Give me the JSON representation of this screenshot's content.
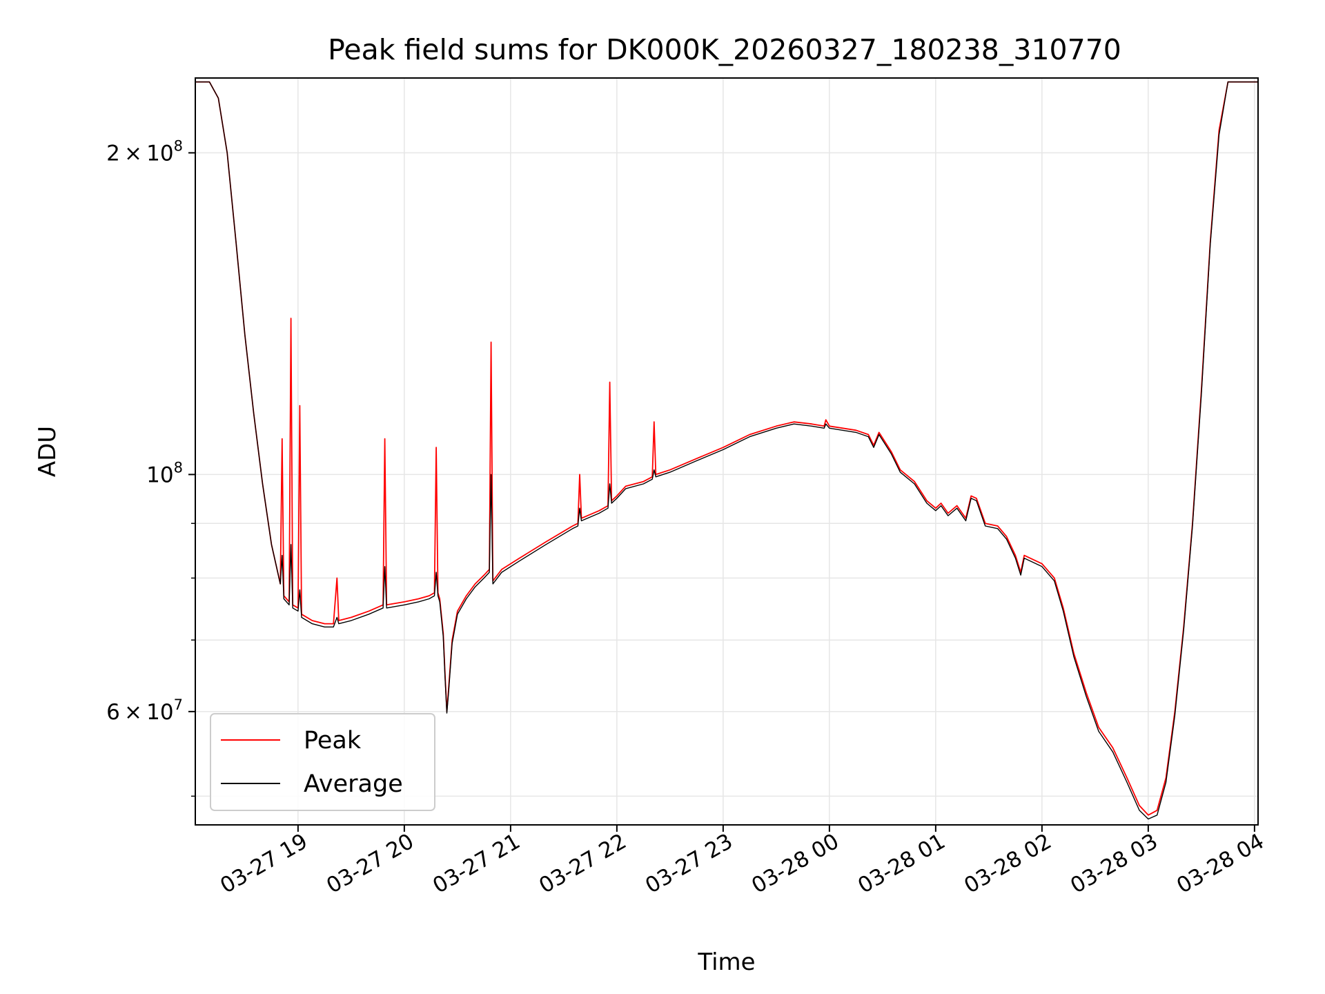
{
  "chart_data": {
    "type": "line",
    "title": "Peak field sums for DK000K_20260327_180238_310770",
    "xlabel": "Time",
    "ylabel": "ADU",
    "yscale": "log",
    "grid": true,
    "legend_position": "lower-left",
    "xlim": [
      "2026-03-27 18:02",
      "2026-03-28 04:02"
    ],
    "ylim": [
      47000000,
      235000000
    ],
    "x_ticks": [
      {
        "t": "2026-03-27 19:00",
        "label": "03-27 19"
      },
      {
        "t": "2026-03-27 20:00",
        "label": "03-27 20"
      },
      {
        "t": "2026-03-27 21:00",
        "label": "03-27 21"
      },
      {
        "t": "2026-03-27 22:00",
        "label": "03-27 22"
      },
      {
        "t": "2026-03-27 23:00",
        "label": "03-27 23"
      },
      {
        "t": "2026-03-28 00:00",
        "label": "03-28 00"
      },
      {
        "t": "2026-03-28 01:00",
        "label": "03-28 01"
      },
      {
        "t": "2026-03-28 02:00",
        "label": "03-28 02"
      },
      {
        "t": "2026-03-28 03:00",
        "label": "03-28 03"
      },
      {
        "t": "2026-03-28 04:00",
        "label": "03-28 04"
      }
    ],
    "y_major_ticks": [
      {
        "v": 200000000,
        "mant": "2 × 10",
        "exp": "8"
      },
      {
        "v": 100000000,
        "mant": "10",
        "exp": "8"
      },
      {
        "v": 60000000,
        "mant": "6 × 10",
        "exp": "7"
      }
    ],
    "y_minor_ticks": [
      50000000,
      70000000,
      80000000,
      90000000
    ],
    "series": [
      {
        "name": "Peak",
        "color": "#ff0000",
        "points": [
          [
            "2026-03-27 18:02",
            233000000
          ],
          [
            "2026-03-27 18:10",
            233000000
          ],
          [
            "2026-03-27 18:15",
            225000000
          ],
          [
            "2026-03-27 18:20",
            200000000
          ],
          [
            "2026-03-27 18:25",
            165000000
          ],
          [
            "2026-03-27 18:30",
            135000000
          ],
          [
            "2026-03-27 18:35",
            114000000
          ],
          [
            "2026-03-27 18:40",
            98000000
          ],
          [
            "2026-03-27 18:45",
            86000000
          ],
          [
            "2026-03-27 18:50",
            79000000
          ],
          [
            "2026-03-27 18:51",
            108000000
          ],
          [
            "2026-03-27 18:52",
            77000000
          ],
          [
            "2026-03-27 18:55",
            76000000
          ],
          [
            "2026-03-27 18:56",
            140000000
          ],
          [
            "2026-03-27 18:57",
            75500000
          ],
          [
            "2026-03-27 19:00",
            75000000
          ],
          [
            "2026-03-27 19:01",
            116000000
          ],
          [
            "2026-03-27 19:02",
            74000000
          ],
          [
            "2026-03-27 19:08",
            73000000
          ],
          [
            "2026-03-27 19:15",
            72500000
          ],
          [
            "2026-03-27 19:20",
            72500000
          ],
          [
            "2026-03-27 19:22",
            80000000
          ],
          [
            "2026-03-27 19:23",
            73000000
          ],
          [
            "2026-03-27 19:30",
            73500000
          ],
          [
            "2026-03-27 19:40",
            74500000
          ],
          [
            "2026-03-27 19:48",
            75500000
          ],
          [
            "2026-03-27 19:49",
            108000000
          ],
          [
            "2026-03-27 19:50",
            75500000
          ],
          [
            "2026-03-27 20:00",
            76000000
          ],
          [
            "2026-03-27 20:08",
            76500000
          ],
          [
            "2026-03-27 20:14",
            77000000
          ],
          [
            "2026-03-27 20:17",
            77500000
          ],
          [
            "2026-03-27 20:18",
            106000000
          ],
          [
            "2026-03-27 20:19",
            77500000
          ],
          [
            "2026-03-27 20:20",
            76500000
          ],
          [
            "2026-03-27 20:22",
            71000000
          ],
          [
            "2026-03-27 20:23",
            65000000
          ],
          [
            "2026-03-27 20:24",
            60000000
          ],
          [
            "2026-03-27 20:25",
            63000000
          ],
          [
            "2026-03-27 20:27",
            70000000
          ],
          [
            "2026-03-27 20:30",
            74500000
          ],
          [
            "2026-03-27 20:35",
            77000000
          ],
          [
            "2026-03-27 20:40",
            79000000
          ],
          [
            "2026-03-27 20:45",
            80500000
          ],
          [
            "2026-03-27 20:48",
            81500000
          ],
          [
            "2026-03-27 20:49",
            133000000
          ],
          [
            "2026-03-27 20:50",
            79500000
          ],
          [
            "2026-03-27 20:55",
            81500000
          ],
          [
            "2026-03-27 21:05",
            83500000
          ],
          [
            "2026-03-27 21:20",
            86500000
          ],
          [
            "2026-03-27 21:35",
            89500000
          ],
          [
            "2026-03-27 21:38",
            90000000
          ],
          [
            "2026-03-27 21:39",
            100000000
          ],
          [
            "2026-03-27 21:40",
            91000000
          ],
          [
            "2026-03-27 21:50",
            92500000
          ],
          [
            "2026-03-27 21:55",
            93500000
          ],
          [
            "2026-03-27 21:56",
            122000000
          ],
          [
            "2026-03-27 21:57",
            94500000
          ],
          [
            "2026-03-27 22:00",
            95500000
          ],
          [
            "2026-03-27 22:05",
            97500000
          ],
          [
            "2026-03-27 22:15",
            98500000
          ],
          [
            "2026-03-27 22:20",
            99500000
          ],
          [
            "2026-03-27 22:21",
            112000000
          ],
          [
            "2026-03-27 22:22",
            100000000
          ],
          [
            "2026-03-27 22:30",
            101000000
          ],
          [
            "2026-03-27 22:45",
            103500000
          ],
          [
            "2026-03-27 23:00",
            106000000
          ],
          [
            "2026-03-27 23:15",
            109000000
          ],
          [
            "2026-03-27 23:30",
            111000000
          ],
          [
            "2026-03-27 23:40",
            112000000
          ],
          [
            "2026-03-27 23:50",
            111500000
          ],
          [
            "2026-03-27 23:57",
            111000000
          ],
          [
            "2026-03-27 23:58",
            112500000
          ],
          [
            "2026-03-28 00:00",
            111000000
          ],
          [
            "2026-03-28 00:15",
            110000000
          ],
          [
            "2026-03-28 00:22",
            109000000
          ],
          [
            "2026-03-28 00:25",
            106500000
          ],
          [
            "2026-03-28 00:28",
            109500000
          ],
          [
            "2026-03-28 00:35",
            105000000
          ],
          [
            "2026-03-28 00:40",
            101000000
          ],
          [
            "2026-03-28 00:48",
            98500000
          ],
          [
            "2026-03-28 00:55",
            94500000
          ],
          [
            "2026-03-28 01:00",
            93000000
          ],
          [
            "2026-03-28 01:03",
            94000000
          ],
          [
            "2026-03-28 01:07",
            92000000
          ],
          [
            "2026-03-28 01:12",
            93500000
          ],
          [
            "2026-03-28 01:17",
            91000000
          ],
          [
            "2026-03-28 01:20",
            95500000
          ],
          [
            "2026-03-28 01:23",
            95000000
          ],
          [
            "2026-03-28 01:28",
            90000000
          ],
          [
            "2026-03-28 01:35",
            89500000
          ],
          [
            "2026-03-28 01:40",
            87500000
          ],
          [
            "2026-03-28 01:45",
            84000000
          ],
          [
            "2026-03-28 01:48",
            81000000
          ],
          [
            "2026-03-28 01:50",
            84000000
          ],
          [
            "2026-03-28 02:00",
            82500000
          ],
          [
            "2026-03-28 02:07",
            80000000
          ],
          [
            "2026-03-28 02:12",
            75000000
          ],
          [
            "2026-03-28 02:18",
            68000000
          ],
          [
            "2026-03-28 02:25",
            62500000
          ],
          [
            "2026-03-28 02:32",
            58000000
          ],
          [
            "2026-03-28 02:40",
            55500000
          ],
          [
            "2026-03-28 02:48",
            52000000
          ],
          [
            "2026-03-28 02:55",
            49000000
          ],
          [
            "2026-03-28 03:00",
            48000000
          ],
          [
            "2026-03-28 03:05",
            48500000
          ],
          [
            "2026-03-28 03:10",
            52000000
          ],
          [
            "2026-03-28 03:15",
            60000000
          ],
          [
            "2026-03-28 03:20",
            72000000
          ],
          [
            "2026-03-28 03:25",
            90000000
          ],
          [
            "2026-03-28 03:30",
            120000000
          ],
          [
            "2026-03-28 03:35",
            165000000
          ],
          [
            "2026-03-28 03:40",
            210000000
          ],
          [
            "2026-03-28 03:45",
            233000000
          ],
          [
            "2026-03-28 04:02",
            233000000
          ]
        ]
      },
      {
        "name": "Average",
        "color": "#000000",
        "points": [
          [
            "2026-03-27 18:02",
            233000000
          ],
          [
            "2026-03-27 18:10",
            233000000
          ],
          [
            "2026-03-27 18:15",
            225000000
          ],
          [
            "2026-03-27 18:20",
            200000000
          ],
          [
            "2026-03-27 18:25",
            165000000
          ],
          [
            "2026-03-27 18:30",
            135000000
          ],
          [
            "2026-03-27 18:35",
            114000000
          ],
          [
            "2026-03-27 18:40",
            98000000
          ],
          [
            "2026-03-27 18:45",
            86000000
          ],
          [
            "2026-03-27 18:50",
            79000000
          ],
          [
            "2026-03-27 18:51",
            84000000
          ],
          [
            "2026-03-27 18:52",
            76500000
          ],
          [
            "2026-03-27 18:55",
            75500000
          ],
          [
            "2026-03-27 18:56",
            86000000
          ],
          [
            "2026-03-27 18:57",
            75000000
          ],
          [
            "2026-03-27 19:00",
            74500000
          ],
          [
            "2026-03-27 19:01",
            78000000
          ],
          [
            "2026-03-27 19:02",
            73500000
          ],
          [
            "2026-03-27 19:08",
            72500000
          ],
          [
            "2026-03-27 19:15",
            72000000
          ],
          [
            "2026-03-27 19:20",
            72000000
          ],
          [
            "2026-03-27 19:22",
            73500000
          ],
          [
            "2026-03-27 19:23",
            72500000
          ],
          [
            "2026-03-27 19:30",
            73000000
          ],
          [
            "2026-03-27 19:40",
            74000000
          ],
          [
            "2026-03-27 19:48",
            75000000
          ],
          [
            "2026-03-27 19:49",
            82000000
          ],
          [
            "2026-03-27 19:50",
            75000000
          ],
          [
            "2026-03-27 20:00",
            75500000
          ],
          [
            "2026-03-27 20:08",
            76000000
          ],
          [
            "2026-03-27 20:14",
            76500000
          ],
          [
            "2026-03-27 20:17",
            77000000
          ],
          [
            "2026-03-27 20:18",
            81000000
          ],
          [
            "2026-03-27 20:19",
            77000000
          ],
          [
            "2026-03-27 20:20",
            76000000
          ],
          [
            "2026-03-27 20:22",
            70500000
          ],
          [
            "2026-03-27 20:23",
            64500000
          ],
          [
            "2026-03-27 20:24",
            59800000
          ],
          [
            "2026-03-27 20:25",
            62500000
          ],
          [
            "2026-03-27 20:27",
            69500000
          ],
          [
            "2026-03-27 20:30",
            74000000
          ],
          [
            "2026-03-27 20:35",
            76500000
          ],
          [
            "2026-03-27 20:40",
            78500000
          ],
          [
            "2026-03-27 20:45",
            80000000
          ],
          [
            "2026-03-27 20:48",
            81000000
          ],
          [
            "2026-03-27 20:49",
            100000000
          ],
          [
            "2026-03-27 20:50",
            79000000
          ],
          [
            "2026-03-27 20:55",
            81000000
          ],
          [
            "2026-03-27 21:05",
            83000000
          ],
          [
            "2026-03-27 21:20",
            86000000
          ],
          [
            "2026-03-27 21:35",
            89000000
          ],
          [
            "2026-03-27 21:38",
            89500000
          ],
          [
            "2026-03-27 21:39",
            93000000
          ],
          [
            "2026-03-27 21:40",
            90500000
          ],
          [
            "2026-03-27 21:50",
            92000000
          ],
          [
            "2026-03-27 21:55",
            93000000
          ],
          [
            "2026-03-27 21:56",
            98000000
          ],
          [
            "2026-03-27 21:57",
            94000000
          ],
          [
            "2026-03-27 22:00",
            95000000
          ],
          [
            "2026-03-27 22:05",
            97000000
          ],
          [
            "2026-03-27 22:15",
            98000000
          ],
          [
            "2026-03-27 22:20",
            99000000
          ],
          [
            "2026-03-27 22:21",
            101000000
          ],
          [
            "2026-03-27 22:22",
            99500000
          ],
          [
            "2026-03-27 22:30",
            100500000
          ],
          [
            "2026-03-27 22:45",
            103000000
          ],
          [
            "2026-03-27 23:00",
            105500000
          ],
          [
            "2026-03-27 23:15",
            108500000
          ],
          [
            "2026-03-27 23:30",
            110500000
          ],
          [
            "2026-03-27 23:40",
            111500000
          ],
          [
            "2026-03-27 23:50",
            111000000
          ],
          [
            "2026-03-27 23:57",
            110500000
          ],
          [
            "2026-03-27 23:58",
            111500000
          ],
          [
            "2026-03-28 00:00",
            110500000
          ],
          [
            "2026-03-28 00:15",
            109500000
          ],
          [
            "2026-03-28 00:22",
            108500000
          ],
          [
            "2026-03-28 00:25",
            106000000
          ],
          [
            "2026-03-28 00:28",
            109000000
          ],
          [
            "2026-03-28 00:35",
            104500000
          ],
          [
            "2026-03-28 00:40",
            100500000
          ],
          [
            "2026-03-28 00:48",
            98000000
          ],
          [
            "2026-03-28 00:55",
            94000000
          ],
          [
            "2026-03-28 01:00",
            92500000
          ],
          [
            "2026-03-28 01:03",
            93500000
          ],
          [
            "2026-03-28 01:07",
            91500000
          ],
          [
            "2026-03-28 01:12",
            93000000
          ],
          [
            "2026-03-28 01:17",
            90500000
          ],
          [
            "2026-03-28 01:20",
            95000000
          ],
          [
            "2026-03-28 01:23",
            94500000
          ],
          [
            "2026-03-28 01:28",
            89500000
          ],
          [
            "2026-03-28 01:35",
            89000000
          ],
          [
            "2026-03-28 01:40",
            87000000
          ],
          [
            "2026-03-28 01:45",
            83500000
          ],
          [
            "2026-03-28 01:48",
            80500000
          ],
          [
            "2026-03-28 01:50",
            83500000
          ],
          [
            "2026-03-28 02:00",
            82000000
          ],
          [
            "2026-03-28 02:07",
            79500000
          ],
          [
            "2026-03-28 02:12",
            74500000
          ],
          [
            "2026-03-28 02:18",
            67500000
          ],
          [
            "2026-03-28 02:25",
            62000000
          ],
          [
            "2026-03-28 02:32",
            57500000
          ],
          [
            "2026-03-28 02:40",
            55000000
          ],
          [
            "2026-03-28 02:48",
            51500000
          ],
          [
            "2026-03-28 02:55",
            48500000
          ],
          [
            "2026-03-28 03:00",
            47600000
          ],
          [
            "2026-03-28 03:05",
            48000000
          ],
          [
            "2026-03-28 03:10",
            51500000
          ],
          [
            "2026-03-28 03:15",
            59500000
          ],
          [
            "2026-03-28 03:20",
            71500000
          ],
          [
            "2026-03-28 03:25",
            89500000
          ],
          [
            "2026-03-28 03:30",
            119000000
          ],
          [
            "2026-03-28 03:35",
            164000000
          ],
          [
            "2026-03-28 03:40",
            208000000
          ],
          [
            "2026-03-28 03:45",
            233000000
          ],
          [
            "2026-03-28 04:02",
            233000000
          ]
        ]
      }
    ]
  }
}
